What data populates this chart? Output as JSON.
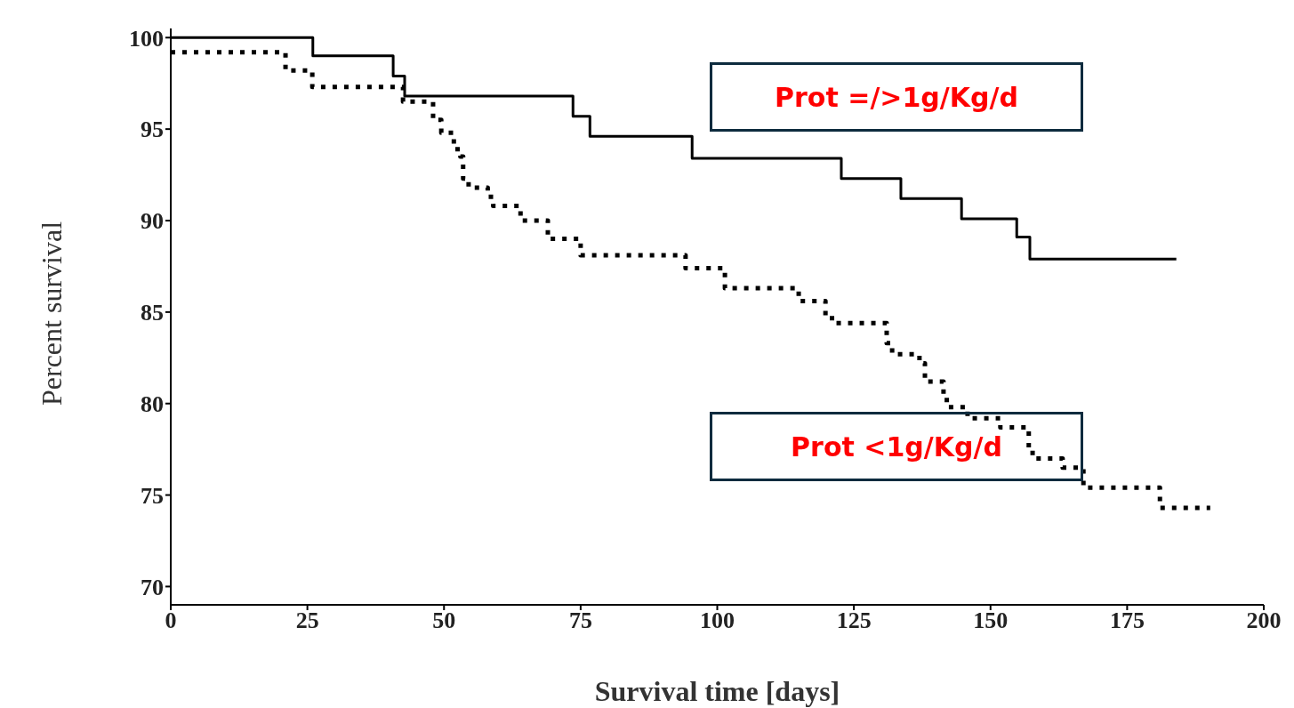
{
  "chart_data": {
    "type": "step",
    "xlabel": "Survival time [days]",
    "ylabel": "Percent survival",
    "series": [
      {
        "name": "Prot =/>1g/Kg/d",
        "color": "#000000",
        "line_style": "solid",
        "x": [
          0,
          26,
          40.7,
          42.8,
          73.6,
          76.7,
          95.4,
          122.7,
          133.6,
          144.7,
          154.8,
          157.2,
          184
        ],
        "values": [
          100,
          99.0,
          97.9,
          96.8,
          95.7,
          94.6,
          93.4,
          92.3,
          91.2,
          90.1,
          89.1,
          87.9,
          87.9
        ]
      },
      {
        "name": "Prot <1g/Kg/d",
        "color": "#000000",
        "line_style": "dotted",
        "x": [
          0,
          21,
          25.9,
          42.5,
          48,
          49.5,
          51.8,
          53,
          53.5,
          54.5,
          58,
          59,
          64,
          69,
          75,
          94.2,
          101.4,
          114.9,
          119.8,
          121,
          131,
          132,
          137,
          138,
          141.4,
          142,
          145.8,
          151.8,
          157,
          157.7,
          163.2,
          167,
          181,
          190.2
        ],
        "values": [
          99.2,
          98.2,
          97.3,
          96.5,
          95.5,
          94.8,
          93.9,
          93.5,
          92.3,
          91.8,
          91.3,
          90.8,
          90.0,
          89.0,
          88.1,
          87.4,
          86.3,
          85.6,
          84.8,
          84.4,
          83.3,
          82.7,
          82.2,
          81.2,
          80.4,
          79.8,
          79.2,
          78.7,
          77.6,
          77.0,
          76.5,
          75.4,
          74.3,
          74.3
        ]
      }
    ],
    "xlim": [
      0,
      200
    ],
    "xticks": [
      0,
      25,
      50,
      75,
      100,
      125,
      150,
      175,
      200
    ],
    "ylim": [
      69,
      100.5
    ],
    "yticks": [
      70,
      75,
      80,
      85,
      90,
      95,
      100
    ],
    "grid": false
  }
}
